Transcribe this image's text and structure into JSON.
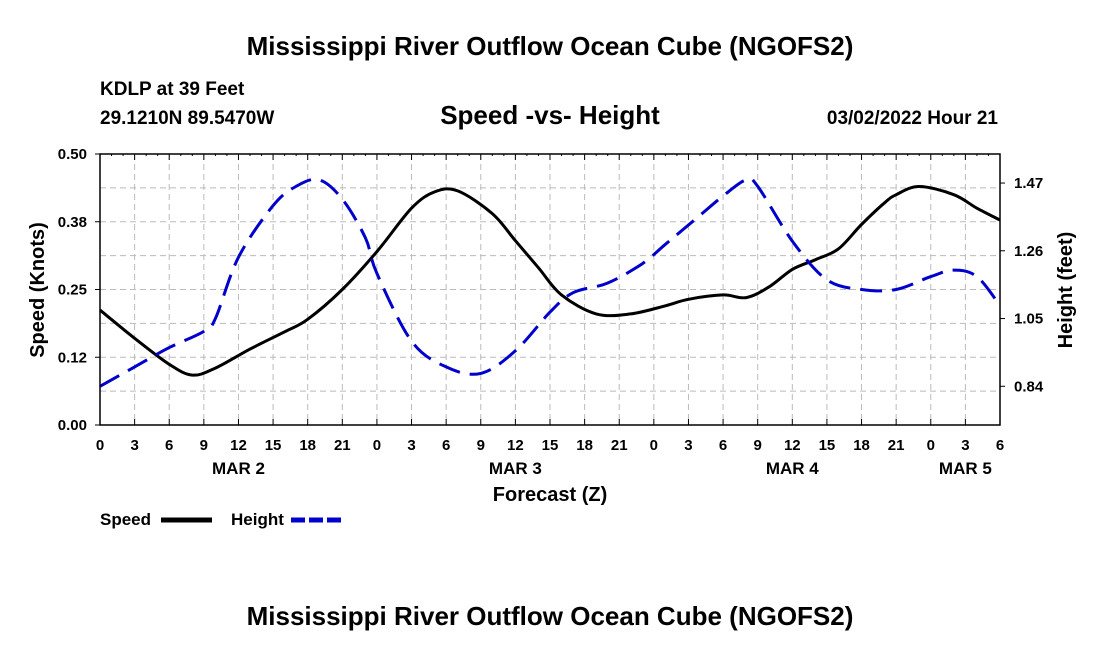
{
  "chart_data": {
    "type": "line",
    "title": "Mississippi River Outflow Ocean Cube (NGOFS2)",
    "subtitle": "Speed -vs- Height",
    "station": "KDLP at 39 Feet",
    "location": "29.1210N  89.5470W",
    "datetime": "03/02/2022 Hour 21",
    "xlabel": "Forecast (Z)",
    "ylabel_left": "Speed (Knots)",
    "ylabel_right": "Height (feet)",
    "x_range": [
      0,
      78
    ],
    "ylim_left": [
      0,
      0.5
    ],
    "ylim_right": [
      0.72,
      1.56
    ],
    "yticks_left": [
      "0.00",
      "0.12",
      "0.25",
      "0.38",
      "0.50"
    ],
    "yticks_left_values": [
      0,
      0.125,
      0.25,
      0.375,
      0.5
    ],
    "yticks_right": [
      "0.84",
      "1.05",
      "1.26",
      "1.47"
    ],
    "yticks_right_values": [
      0.84,
      1.05,
      1.26,
      1.47
    ],
    "x_tick_labels": [
      "0",
      "3",
      "6",
      "9",
      "12",
      "15",
      "18",
      "21",
      "0",
      "3",
      "6",
      "9",
      "12",
      "15",
      "18",
      "21",
      "0",
      "3",
      "6",
      "9",
      "12",
      "15",
      "18",
      "21",
      "0",
      "3",
      "6"
    ],
    "day_labels": [
      {
        "label": "MAR 2",
        "hour": 12
      },
      {
        "label": "MAR 3",
        "hour": 36
      },
      {
        "label": "MAR 4",
        "hour": 60
      },
      {
        "label": "MAR 5",
        "hour": 75
      }
    ],
    "grid": true,
    "legend_position": "bottom-left",
    "series": [
      {
        "name": "Speed",
        "axis": "left",
        "style": "solid",
        "color": "#000000",
        "x": [
          0,
          3,
          6,
          8,
          10,
          13,
          16,
          18,
          21,
          24,
          27,
          29,
          31,
          34,
          36,
          38,
          40,
          43,
          46,
          49,
          51,
          54,
          56,
          58,
          60,
          62,
          64,
          66,
          68,
          69,
          71,
          74,
          76,
          78
        ],
        "values": [
          0.212,
          0.16,
          0.112,
          0.092,
          0.105,
          0.14,
          0.172,
          0.195,
          0.25,
          0.32,
          0.4,
          0.43,
          0.432,
          0.39,
          0.34,
          0.29,
          0.24,
          0.205,
          0.205,
          0.22,
          0.232,
          0.24,
          0.235,
          0.255,
          0.287,
          0.305,
          0.325,
          0.37,
          0.41,
          0.425,
          0.44,
          0.425,
          0.4,
          0.378
        ]
      },
      {
        "name": "Height",
        "axis": "right",
        "style": "dashed",
        "color": "#0000cc",
        "x": [
          0,
          3,
          6,
          9,
          10,
          12,
          15,
          17,
          19,
          21,
          23,
          24,
          27,
          30,
          33,
          36,
          39,
          41,
          44,
          47,
          49,
          52,
          54,
          56,
          57,
          60,
          63,
          66,
          69,
          72,
          74,
          76,
          78
        ],
        "values": [
          0.84,
          0.9,
          0.96,
          1.01,
          1.05,
          1.24,
          1.4,
          1.46,
          1.48,
          1.42,
          1.3,
          1.19,
          0.98,
          0.9,
          0.88,
          0.95,
          1.07,
          1.13,
          1.16,
          1.22,
          1.28,
          1.37,
          1.43,
          1.48,
          1.46,
          1.29,
          1.17,
          1.14,
          1.14,
          1.18,
          1.2,
          1.18,
          1.09
        ]
      }
    ]
  },
  "legend": [
    {
      "label": "Speed",
      "color": "#000000",
      "style": "solid"
    },
    {
      "label": "Height",
      "color": "#0000cc",
      "style": "dashed"
    }
  ],
  "footer_title": "Mississippi River Outflow Ocean Cube (NGOFS2)"
}
